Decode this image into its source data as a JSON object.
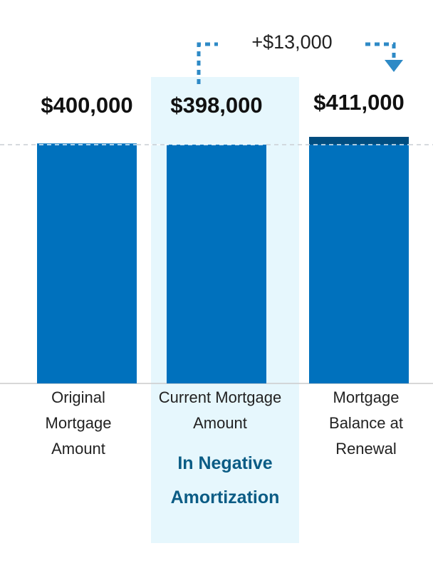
{
  "chart_data": {
    "type": "bar",
    "categories": [
      "Original Mortgage Amount",
      "Current Mortgage Amount",
      "Mortgage Balance at Renewal"
    ],
    "category_lines": [
      [
        "Original",
        "Mortgage",
        "Amount"
      ],
      [
        "Current Mortgage",
        "Amount"
      ],
      [
        "Mortgage",
        "Balance at",
        "Renewal"
      ]
    ],
    "values": [
      400000,
      398000,
      411000
    ],
    "value_labels": [
      "$400,000",
      "$398,000",
      "$411,000"
    ],
    "highlighted_category_index": 1,
    "highlight_note": [
      "In Negative",
      "Amortization"
    ],
    "change_annotation": "+$13,000",
    "reference_line_value": 398000,
    "increase_segment": {
      "category_index": 2,
      "from": 398000,
      "to": 411000
    },
    "ylim": [
      0,
      411000
    ],
    "grid": false,
    "legend": "none",
    "colors": {
      "bar": "#0071bd",
      "increase": "#004d80",
      "highlight_bg": "#e6f7fd",
      "note_text": "#0b5c85",
      "arrow": "#2e8ac6",
      "axis": "#cccccc",
      "ref_line": "#ffffff"
    }
  }
}
